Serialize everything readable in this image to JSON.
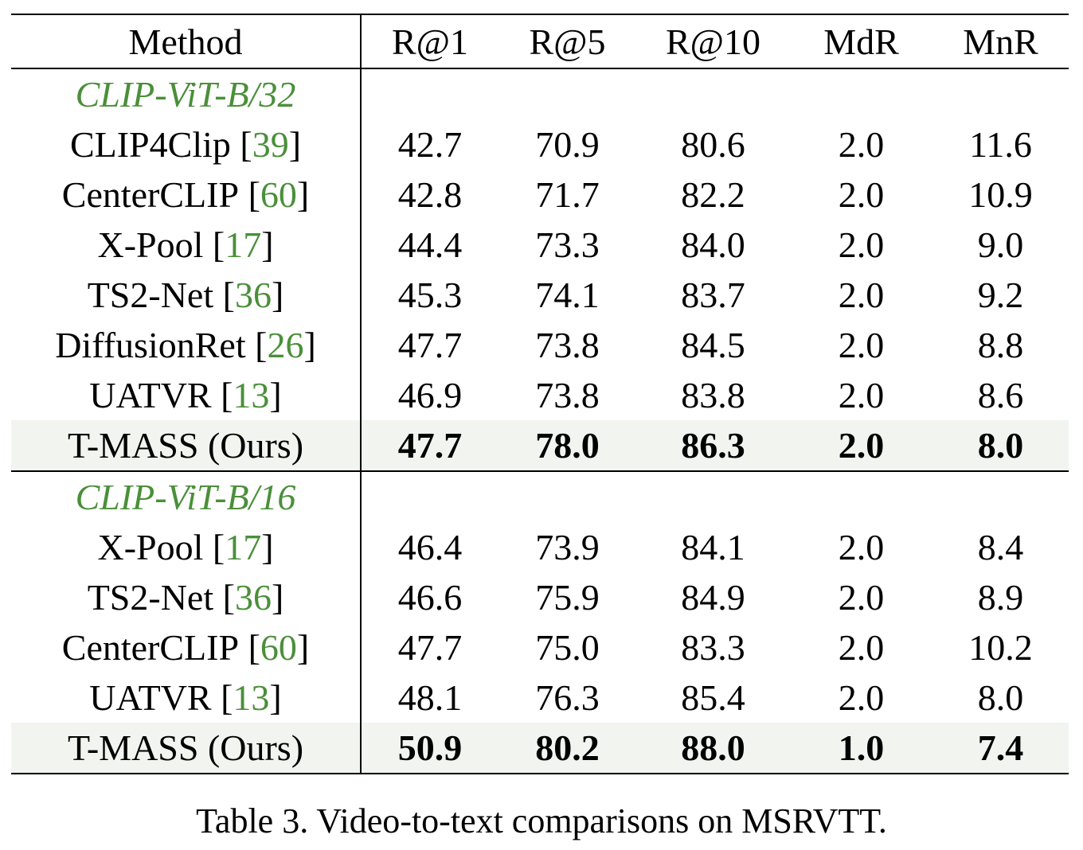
{
  "table": {
    "header": [
      "Method",
      "R@1",
      "R@5",
      "R@10",
      "MdR",
      "MnR"
    ],
    "sections": [
      {
        "group": "CLIP-ViT-B/32",
        "rows": [
          {
            "method": {
              "name": "CLIP4Clip",
              "citation": {
                "open": "[",
                "number": "39",
                "close": "]"
              }
            },
            "values": [
              "42.7",
              "70.9",
              "80.6",
              "2.0",
              "11.6"
            ]
          },
          {
            "method": {
              "name": "CenterCLIP",
              "citation": {
                "open": "[",
                "number": "60",
                "close": "]"
              }
            },
            "values": [
              "42.8",
              "71.7",
              "82.2",
              "2.0",
              "10.9"
            ]
          },
          {
            "method": {
              "name": "X-Pool",
              "citation": {
                "open": "[",
                "number": "17",
                "close": "]"
              }
            },
            "values": [
              "44.4",
              "73.3",
              "84.0",
              "2.0",
              "9.0"
            ]
          },
          {
            "method": {
              "name": "TS2-Net",
              "citation": {
                "open": "[",
                "number": "36",
                "close": "]"
              }
            },
            "values": [
              "45.3",
              "74.1",
              "83.7",
              "2.0",
              "9.2"
            ]
          },
          {
            "method": {
              "name": "DiffusionRet",
              "citation": {
                "open": "[",
                "number": "26",
                "close": "]"
              }
            },
            "values": [
              "47.7",
              "73.8",
              "84.5",
              "2.0",
              "8.8"
            ]
          },
          {
            "method": {
              "name": "UATVR",
              "citation": {
                "open": "[",
                "number": "13",
                "close": "]"
              }
            },
            "values": [
              "46.9",
              "73.8",
              "83.8",
              "2.0",
              "8.6"
            ]
          },
          {
            "method": {
              "name": "T-MASS (Ours)"
            },
            "values": [
              "47.7",
              "78.0",
              "86.3",
              "2.0",
              "8.0"
            ],
            "highlight": true
          }
        ]
      },
      {
        "group": "CLIP-ViT-B/16",
        "rows": [
          {
            "method": {
              "name": "X-Pool",
              "citation": {
                "open": "[",
                "number": "17",
                "close": "]"
              }
            },
            "values": [
              "46.4",
              "73.9",
              "84.1",
              "2.0",
              "8.4"
            ]
          },
          {
            "method": {
              "name": "TS2-Net",
              "citation": {
                "open": "[",
                "number": "36",
                "close": "]"
              }
            },
            "values": [
              "46.6",
              "75.9",
              "84.9",
              "2.0",
              "8.9"
            ]
          },
          {
            "method": {
              "name": "CenterCLIP",
              "citation": {
                "open": "[",
                "number": "60",
                "close": "]"
              }
            },
            "values": [
              "47.7",
              "75.0",
              "83.3",
              "2.0",
              "10.2"
            ]
          },
          {
            "method": {
              "name": "UATVR",
              "citation": {
                "open": "[",
                "number": "13",
                "close": "]"
              }
            },
            "values": [
              "48.1",
              "76.3",
              "85.4",
              "2.0",
              "8.0"
            ]
          },
          {
            "method": {
              "name": "T-MASS (Ours)"
            },
            "values": [
              "50.9",
              "80.2",
              "88.0",
              "1.0",
              "7.4"
            ],
            "highlight": true
          }
        ]
      }
    ]
  },
  "caption": "Table 3. Video-to-text comparisons on MSRVTT."
}
